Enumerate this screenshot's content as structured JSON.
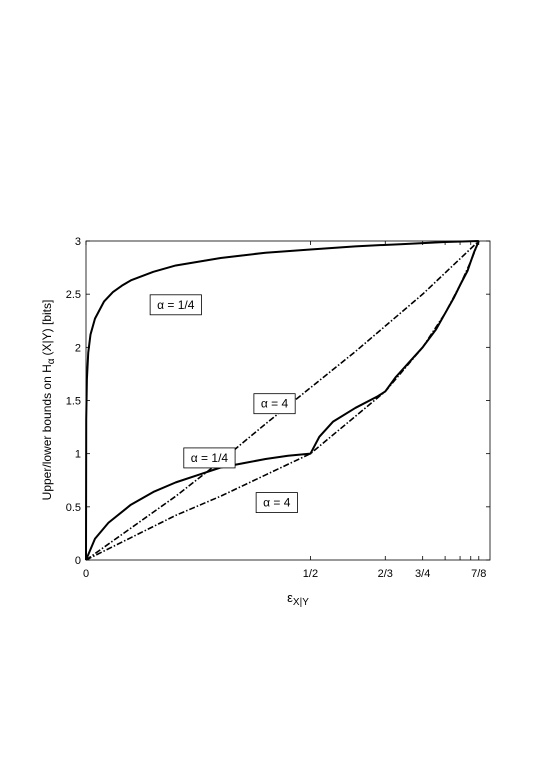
{
  "chart_data": {
    "type": "line",
    "title": "",
    "xlabel": {
      "main": "ε",
      "sub": "X|Y"
    },
    "ylabel": {
      "prefix": "Upper/lower bounds on H",
      "sub": "α",
      "suffix": "(X|Y)  [bits]"
    },
    "xlim": [
      0,
      0.9
    ],
    "ylim": [
      0,
      3
    ],
    "grid": false,
    "x_ticks": [
      {
        "value": 0,
        "label": "0"
      },
      {
        "value": 0.5,
        "label": "1/2"
      },
      {
        "value": 0.6667,
        "label": "2/3"
      },
      {
        "value": 0.75,
        "label": "3/4"
      },
      {
        "value": 0.8,
        "label": ""
      },
      {
        "value": 0.8333,
        "label": ""
      },
      {
        "value": 0.8571,
        "label": ""
      },
      {
        "value": 0.875,
        "label": "7/8"
      }
    ],
    "y_ticks": [
      {
        "value": 0,
        "label": "0"
      },
      {
        "value": 0.5,
        "label": "0.5"
      },
      {
        "value": 1,
        "label": "1"
      },
      {
        "value": 1.5,
        "label": "1.5"
      },
      {
        "value": 2,
        "label": "2"
      },
      {
        "value": 2.5,
        "label": "2.5"
      },
      {
        "value": 3,
        "label": "3"
      }
    ],
    "series": [
      {
        "style": "solid",
        "x": [
          0,
          0.0005,
          0.002,
          0.005,
          0.01,
          0.02,
          0.04,
          0.06,
          0.08,
          0.1,
          0.15,
          0.2,
          0.3,
          0.4,
          0.5,
          0.6,
          0.7,
          0.8,
          0.875
        ],
        "y": [
          0,
          1.32,
          1.7,
          1.95,
          2.12,
          2.27,
          2.43,
          2.52,
          2.58,
          2.63,
          2.71,
          2.77,
          2.84,
          2.89,
          2.92,
          2.95,
          2.97,
          2.99,
          3.0
        ]
      },
      {
        "style": "solid",
        "x": [
          0,
          0.02,
          0.05,
          0.1,
          0.15,
          0.2,
          0.25,
          0.3,
          0.35,
          0.4,
          0.45,
          0.5,
          0.52,
          0.55,
          0.6,
          0.65,
          0.6667,
          0.69,
          0.72,
          0.75,
          0.78,
          0.8,
          0.82,
          0.8333,
          0.85,
          0.8571,
          0.865,
          0.875
        ],
        "y": [
          0,
          0.2,
          0.35,
          0.52,
          0.64,
          0.73,
          0.8,
          0.87,
          0.91,
          0.95,
          0.98,
          1.0,
          1.16,
          1.3,
          1.43,
          1.54,
          1.585,
          1.72,
          1.86,
          2.0,
          2.17,
          2.32,
          2.47,
          2.585,
          2.72,
          2.807,
          2.9,
          3.0
        ]
      },
      {
        "style": "dashdot",
        "x": [
          0,
          0.1,
          0.2,
          0.3,
          0.4,
          0.5,
          0.6,
          0.7,
          0.75,
          0.8,
          0.85,
          0.875
        ],
        "y": [
          0,
          0.3,
          0.6,
          0.93,
          1.28,
          1.62,
          1.96,
          2.32,
          2.5,
          2.7,
          2.9,
          3.0
        ]
      },
      {
        "style": "dashdot",
        "x": [
          0,
          0.1,
          0.2,
          0.3,
          0.4,
          0.5,
          0.6667,
          0.75,
          0.8,
          0.8333,
          0.8571,
          0.875
        ],
        "y": [
          0,
          0.21,
          0.42,
          0.6,
          0.8,
          1.0,
          1.585,
          2.0,
          2.32,
          2.585,
          2.807,
          3.0
        ]
      }
    ],
    "annotations": [
      {
        "text": "α = 1/4",
        "x": 0.2,
        "y": 2.4
      },
      {
        "text": "α = 4",
        "x": 0.42,
        "y": 1.47
      },
      {
        "text": "α = 1/4",
        "x": 0.275,
        "y": 0.96
      },
      {
        "text": "α = 4",
        "x": 0.425,
        "y": 0.54
      }
    ]
  }
}
